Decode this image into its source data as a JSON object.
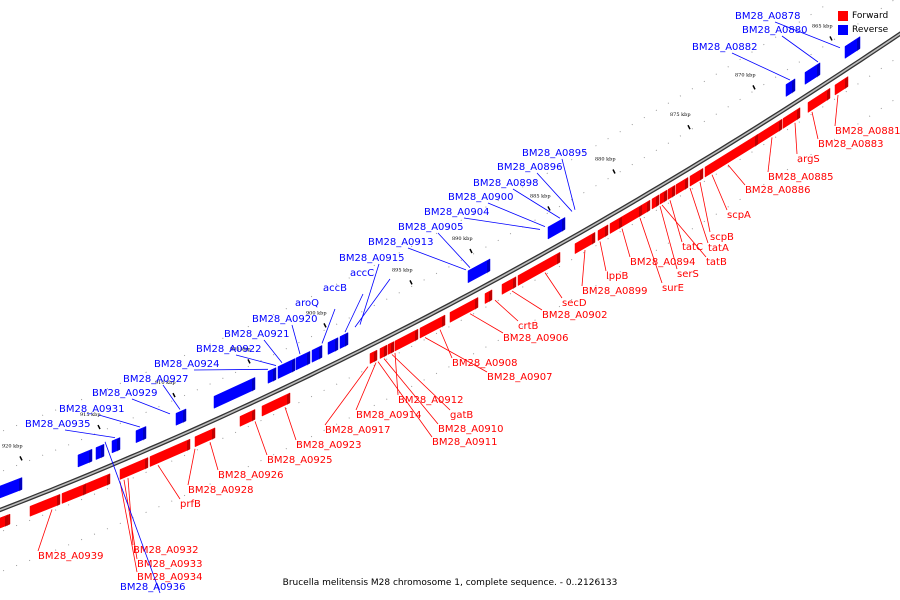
{
  "caption": "Brucella melitensis M28 chromosome 1, complete sequence. - 0..2126133",
  "legend": [
    {
      "label": "Forward",
      "color": "#ff0000"
    },
    {
      "label": "Reverse",
      "color": "#0000ff"
    }
  ],
  "colors": {
    "forward": "#ff0000",
    "reverse": "#0000ff",
    "backbone": "#7f7f7f"
  },
  "kbp_ticks": [
    "865 kbp",
    "870 kbp",
    "875 kbp",
    "880 kbp",
    "885 kbp",
    "890 kbp",
    "895 kbp",
    "900 kbp",
    "905 kbp",
    "910 kbp",
    "915 kbp",
    "920 kbp"
  ],
  "forward_genes": [
    "BM28_A0881",
    "BM28_A0883",
    "argS",
    "BM28_A0885",
    "BM28_A0886",
    "scpA",
    "scpB",
    "tatA",
    "tatC",
    "tatB",
    "serS",
    "surE",
    "BM28_A0894",
    "lppB",
    "BM28_A0899",
    "secD",
    "BM28_A0902",
    "crtB",
    "BM28_A0906",
    "BM28_A0908",
    "BM28_A0907",
    "BM28_A0912",
    "gatB",
    "BM28_A0910",
    "BM28_A0911",
    "BM28_A0914",
    "BM28_A0917",
    "BM28_A0923",
    "BM28_A0925",
    "BM28_A0926",
    "BM28_A0928",
    "prfB",
    "BM28_A0932",
    "BM28_A0933",
    "BM28_A0934",
    "BM28_A0939"
  ],
  "reverse_genes": [
    "BM28_A0878",
    "BM28_A0880",
    "BM28_A0882",
    "BM28_A0895",
    "BM28_A0896",
    "BM28_A0898",
    "BM28_A0900",
    "BM28_A0904",
    "BM28_A0905",
    "BM28_A0913",
    "BM28_A0915",
    "accC",
    "accB",
    "aroQ",
    "BM28_A0920",
    "BM28_A0921",
    "BM28_A0922",
    "BM28_A0924",
    "BM28_A0927",
    "BM28_A0929",
    "BM28_A0931",
    "BM28_A0935",
    "BM28_A0936"
  ]
}
